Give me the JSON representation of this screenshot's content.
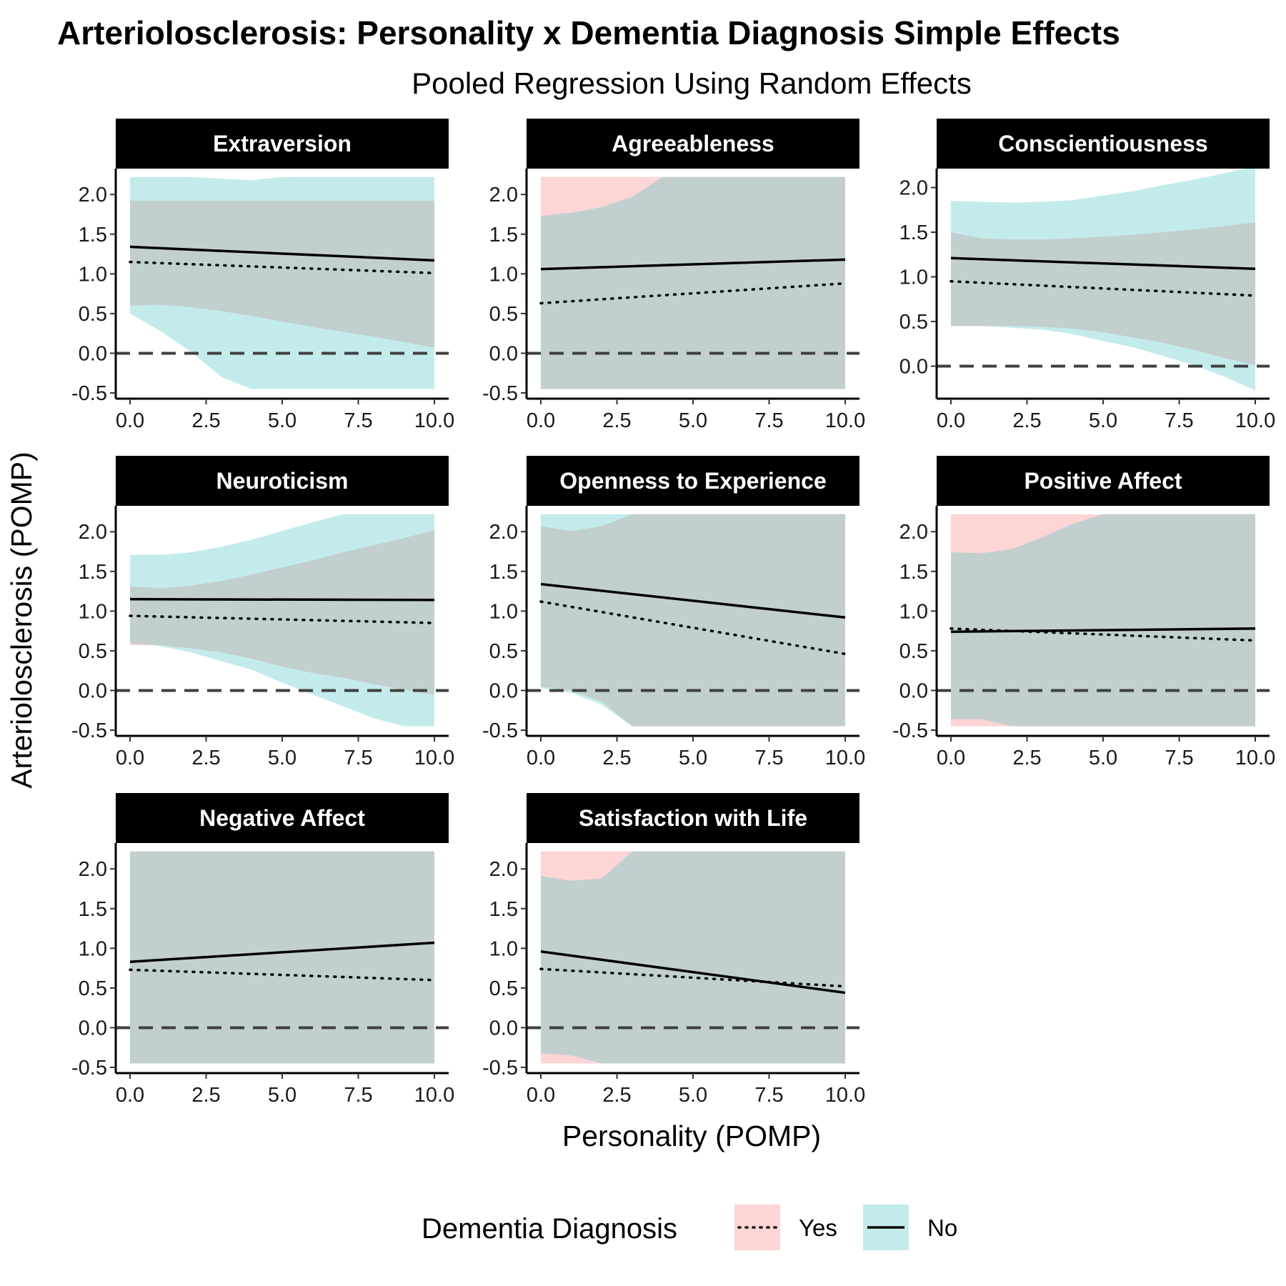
{
  "title": "Arteriolosclerosis: Personality x Dementia Diagnosis Simple Effects",
  "subtitle": "Pooled Regression Using Random Effects",
  "chart_data": {
    "type": "line",
    "xlabel": "Personality (POMP)",
    "ylabel": "Arteriolosclerosis (POMP)",
    "xlim": [
      0,
      10
    ],
    "x_ticks": [
      "0.0",
      "2.5",
      "5.0",
      "7.5",
      "10.0"
    ],
    "x_tick_values": [
      0,
      2.5,
      5,
      7.5,
      10
    ],
    "reference_line_y": 0,
    "legend": {
      "title": "Dementia Diagnosis",
      "position": "bottom",
      "entries": [
        {
          "label": "Yes",
          "linetype": "dotted",
          "fill": "#f8c5c4"
        },
        {
          "label": "No",
          "linetype": "solid",
          "fill": "#c3ebec"
        }
      ]
    },
    "colors": {
      "yes_ribbon": "#fcd5d4",
      "no_ribbon": "#c3ebec",
      "overlap": "#c1cfcf",
      "strip_bg": "#000000"
    },
    "panels": [
      {
        "name": "Extraversion",
        "ylim": [
          -0.5,
          2.2
        ],
        "y_ticks": [
          "-0.5",
          "0.0",
          "0.5",
          "1.0",
          "1.5",
          "2.0"
        ],
        "y_tick_values": [
          -0.5,
          0,
          0.5,
          1,
          1.5,
          2
        ],
        "no": {
          "x": [
            0,
            10
          ],
          "y": [
            1.34,
            1.17
          ]
        },
        "yes": {
          "x": [
            0,
            10
          ],
          "y": [
            1.15,
            1.01
          ]
        },
        "no_band": {
          "x": [
            0,
            1,
            2,
            3,
            4,
            5,
            6,
            7,
            8,
            9,
            10
          ],
          "lower": [
            0.5,
            0.28,
            0.02,
            -0.3,
            -0.45,
            -0.45,
            -0.45,
            -0.45,
            -0.45,
            -0.45,
            -0.45
          ],
          "upper": [
            2.22,
            2.22,
            2.22,
            2.2,
            2.18,
            2.22,
            2.22,
            2.22,
            2.22,
            2.22,
            2.22
          ]
        },
        "yes_band": {
          "x": [
            0,
            1,
            2,
            3,
            4,
            5,
            6,
            7,
            8,
            9,
            10
          ],
          "lower": [
            0.6,
            0.61,
            0.58,
            0.53,
            0.47,
            0.4,
            0.33,
            0.27,
            0.21,
            0.14,
            0.07
          ],
          "upper": [
            1.92,
            1.92,
            1.92,
            1.92,
            1.92,
            1.92,
            1.92,
            1.92,
            1.92,
            1.92,
            1.92
          ]
        }
      },
      {
        "name": "Agreeableness",
        "ylim": [
          -0.5,
          2.2
        ],
        "y_ticks": [
          "-0.5",
          "0.0",
          "0.5",
          "1.0",
          "1.5",
          "2.0"
        ],
        "y_tick_values": [
          -0.5,
          0,
          0.5,
          1,
          1.5,
          2
        ],
        "no": {
          "x": [
            0,
            10
          ],
          "y": [
            1.06,
            1.18
          ]
        },
        "yes": {
          "x": [
            0,
            10
          ],
          "y": [
            0.63,
            0.88
          ]
        },
        "no_band": {
          "x": [
            0,
            1,
            2,
            3,
            4,
            5,
            6,
            7,
            8,
            9,
            10
          ],
          "lower": [
            -0.45,
            -0.45,
            -0.45,
            -0.45,
            -0.45,
            -0.45,
            -0.45,
            -0.45,
            -0.45,
            -0.45,
            -0.45
          ],
          "upper": [
            1.73,
            1.77,
            1.84,
            1.97,
            2.22,
            2.22,
            2.22,
            2.22,
            2.22,
            2.22,
            2.22
          ]
        },
        "yes_band": {
          "x": [
            0,
            10
          ],
          "lower": [
            -0.45,
            -0.45
          ],
          "upper": [
            2.22,
            2.22
          ]
        }
      },
      {
        "name": "Conscientiousness",
        "ylim": [
          -0.3,
          2.1
        ],
        "y_ticks": [
          "0.0",
          "0.5",
          "1.0",
          "1.5",
          "2.0"
        ],
        "y_tick_values": [
          0,
          0.5,
          1,
          1.5,
          2
        ],
        "no": {
          "x": [
            0,
            10
          ],
          "y": [
            1.21,
            1.09
          ]
        },
        "yes": {
          "x": [
            0,
            10
          ],
          "y": [
            0.95,
            0.79
          ]
        },
        "no_band": {
          "x": [
            0,
            1,
            2,
            3,
            4,
            5,
            6,
            7,
            8,
            9,
            10
          ],
          "lower": [
            0.45,
            0.45,
            0.43,
            0.41,
            0.36,
            0.28,
            0.21,
            0.11,
            0.01,
            -0.12,
            -0.27
          ],
          "upper": [
            1.85,
            1.84,
            1.83,
            1.84,
            1.86,
            1.91,
            1.96,
            2.03,
            2.09,
            2.16,
            2.24
          ]
        },
        "yes_band": {
          "x": [
            0,
            1,
            2,
            3,
            4,
            5,
            6,
            7,
            8,
            9,
            10
          ],
          "lower": [
            0.45,
            0.45,
            0.45,
            0.44,
            0.42,
            0.38,
            0.32,
            0.26,
            0.18,
            0.09,
            0.01
          ],
          "upper": [
            1.5,
            1.43,
            1.42,
            1.42,
            1.43,
            1.45,
            1.47,
            1.5,
            1.53,
            1.57,
            1.61
          ]
        }
      },
      {
        "name": "Neuroticism",
        "ylim": [
          -0.5,
          2.2
        ],
        "y_ticks": [
          "-0.5",
          "0.0",
          "0.5",
          "1.0",
          "1.5",
          "2.0"
        ],
        "y_tick_values": [
          -0.5,
          0,
          0.5,
          1,
          1.5,
          2
        ],
        "no": {
          "x": [
            0,
            10
          ],
          "y": [
            1.15,
            1.14
          ]
        },
        "yes": {
          "x": [
            0,
            10
          ],
          "y": [
            0.94,
            0.85
          ]
        },
        "no_band": {
          "x": [
            0,
            1,
            2,
            3,
            4,
            5,
            6,
            7,
            8,
            9,
            10
          ],
          "lower": [
            0.59,
            0.56,
            0.48,
            0.37,
            0.26,
            0.1,
            -0.05,
            -0.2,
            -0.35,
            -0.45,
            -0.45
          ],
          "upper": [
            1.71,
            1.71,
            1.74,
            1.81,
            1.9,
            2.01,
            2.12,
            2.22,
            2.22,
            2.22,
            2.22
          ]
        },
        "yes_band": {
          "x": [
            0,
            1,
            2,
            3,
            4,
            5,
            6,
            7,
            8,
            9,
            10
          ],
          "lower": [
            0.57,
            0.57,
            0.53,
            0.48,
            0.4,
            0.3,
            0.22,
            0.16,
            0.08,
            0.01,
            -0.06
          ],
          "upper": [
            1.31,
            1.29,
            1.32,
            1.38,
            1.46,
            1.55,
            1.64,
            1.74,
            1.83,
            1.92,
            2.02
          ]
        }
      },
      {
        "name": "Openness to Experience",
        "ylim": [
          -0.5,
          2.2
        ],
        "y_ticks": [
          "-0.5",
          "0.0",
          "0.5",
          "1.0",
          "1.5",
          "2.0"
        ],
        "y_tick_values": [
          -0.5,
          0,
          0.5,
          1,
          1.5,
          2
        ],
        "no": {
          "x": [
            0,
            10
          ],
          "y": [
            1.34,
            0.92
          ]
        },
        "yes": {
          "x": [
            0,
            10
          ],
          "y": [
            1.12,
            0.46
          ]
        },
        "no_band": {
          "x": [
            0,
            1,
            2,
            3,
            4,
            5,
            6,
            7,
            8,
            9,
            10
          ],
          "lower": [
            0.03,
            -0.03,
            -0.18,
            -0.45,
            -0.45,
            -0.45,
            -0.45,
            -0.45,
            -0.45,
            -0.45,
            -0.45
          ],
          "upper": [
            2.22,
            2.22,
            2.22,
            2.22,
            2.22,
            2.22,
            2.22,
            2.22,
            2.22,
            2.22,
            2.22
          ]
        },
        "yes_band": {
          "x": [
            0,
            1,
            2,
            3,
            4,
            5,
            6,
            7,
            8,
            9,
            10
          ],
          "lower": [
            0.05,
            0.0,
            -0.14,
            -0.45,
            -0.45,
            -0.45,
            -0.45,
            -0.45,
            -0.45,
            -0.45,
            -0.45
          ],
          "upper": [
            2.07,
            2.01,
            2.07,
            2.22,
            2.22,
            2.22,
            2.22,
            2.22,
            2.22,
            2.22,
            2.22
          ]
        }
      },
      {
        "name": "Positive Affect",
        "ylim": [
          -0.5,
          2.2
        ],
        "y_ticks": [
          "-0.5",
          "0.0",
          "0.5",
          "1.0",
          "1.5",
          "2.0"
        ],
        "y_tick_values": [
          -0.5,
          0,
          0.5,
          1,
          1.5,
          2
        ],
        "no": {
          "x": [
            0,
            10
          ],
          "y": [
            0.74,
            0.78
          ]
        },
        "yes": {
          "x": [
            0,
            10
          ],
          "y": [
            0.78,
            0.63
          ]
        },
        "no_band": {
          "x": [
            0,
            1,
            2,
            3,
            4,
            5,
            6,
            7,
            8,
            9,
            10
          ],
          "lower": [
            -0.36,
            -0.36,
            -0.45,
            -0.45,
            -0.45,
            -0.45,
            -0.45,
            -0.45,
            -0.45,
            -0.45,
            -0.45
          ],
          "upper": [
            1.74,
            1.73,
            1.78,
            1.93,
            2.1,
            2.22,
            2.22,
            2.22,
            2.22,
            2.22,
            2.22
          ]
        },
        "yes_band": {
          "x": [
            0,
            10
          ],
          "lower": [
            -0.45,
            -0.45
          ],
          "upper": [
            2.22,
            2.22
          ]
        }
      },
      {
        "name": "Negative Affect",
        "ylim": [
          -0.5,
          2.2
        ],
        "y_ticks": [
          "-0.5",
          "0.0",
          "0.5",
          "1.0",
          "1.5",
          "2.0"
        ],
        "y_tick_values": [
          -0.5,
          0,
          0.5,
          1,
          1.5,
          2
        ],
        "no": {
          "x": [
            0,
            10
          ],
          "y": [
            0.83,
            1.07
          ]
        },
        "yes": {
          "x": [
            0,
            10
          ],
          "y": [
            0.73,
            0.6
          ]
        },
        "no_band": {
          "x": [
            0,
            10
          ],
          "lower": [
            -0.45,
            -0.45
          ],
          "upper": [
            2.22,
            2.22
          ]
        },
        "yes_band": {
          "x": [
            0,
            10
          ],
          "lower": [
            -0.45,
            -0.45
          ],
          "upper": [
            2.22,
            2.22
          ]
        }
      },
      {
        "name": "Satisfaction with Life",
        "ylim": [
          -0.5,
          2.2
        ],
        "y_ticks": [
          "-0.5",
          "0.0",
          "0.5",
          "1.0",
          "1.5",
          "2.0"
        ],
        "y_tick_values": [
          -0.5,
          0,
          0.5,
          1,
          1.5,
          2
        ],
        "no": {
          "x": [
            0,
            10
          ],
          "y": [
            0.96,
            0.44
          ]
        },
        "yes": {
          "x": [
            0,
            10
          ],
          "y": [
            0.74,
            0.52
          ]
        },
        "no_band": {
          "x": [
            0,
            1,
            2,
            3,
            4,
            5,
            6,
            7,
            8,
            9,
            10
          ],
          "lower": [
            -0.32,
            -0.35,
            -0.45,
            -0.45,
            -0.45,
            -0.45,
            -0.45,
            -0.45,
            -0.45,
            -0.45,
            -0.45
          ],
          "upper": [
            1.91,
            1.85,
            1.88,
            2.22,
            2.22,
            2.22,
            2.22,
            2.22,
            2.22,
            2.22,
            2.22
          ]
        },
        "yes_band": {
          "x": [
            0,
            10
          ],
          "lower": [
            -0.45,
            -0.45
          ],
          "upper": [
            2.22,
            2.22
          ]
        }
      }
    ]
  }
}
